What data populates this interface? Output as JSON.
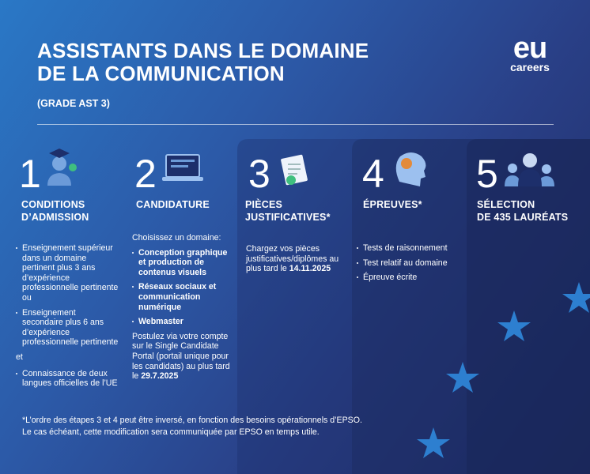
{
  "header": {
    "title_lines": [
      "ASSISTANTS DANS LE DOMAINE",
      "DE LA COMMUNICATION"
    ],
    "subtitle": "(GRADE AST 3)"
  },
  "logo": {
    "mark": "eu",
    "text": "careers"
  },
  "steps": [
    {
      "number": "1",
      "title_lines": [
        "CONDITIONS",
        "D’ADMISSION"
      ],
      "bullets_a": [
        "Enseignement supérieur dans un domaine pertinent plus 3 ans d’expérience professionnelle pertinente ou",
        "Enseignement secondaire plus 6 ans d’expérience professionnelle pertinente"
      ],
      "joiner": "et",
      "bullets_b": [
        "Connaissance de deux langues officielles de l’UE"
      ]
    },
    {
      "number": "2",
      "title_lines": [
        "CANDIDATURE"
      ],
      "intro": "Choisissez un domaine:",
      "bullets": [
        "Conception graphique et production de contenus visuels",
        "Réseaux sociaux et communication numérique",
        "Webmaster"
      ],
      "note": {
        "text": "Postulez via votre compte sur le Single Candidate Portal (portail unique pour les candidats) au plus tard le ",
        "bold": "29.7.2025"
      }
    },
    {
      "number": "3",
      "title_lines": [
        "PIÈCES",
        "JUSTIFICATIVES*"
      ],
      "note": {
        "text": "Chargez vos pièces justificatives/diplômes au plus tard le ",
        "bold": "14.11.2025"
      }
    },
    {
      "number": "4",
      "title_lines": [
        "ÉPREUVES*"
      ],
      "bullets": [
        "Tests de raisonnement",
        "Test relatif au domaine",
        "Épreuve écrite"
      ]
    },
    {
      "number": "5",
      "title_lines": [
        "SÉLECTION",
        "DE 435 LAURÉATS"
      ]
    }
  ],
  "footnote": [
    "*L’ordre des étapes 3 et 4 peut être inversé, en fonction des besoins opérationnels d’EPSO.",
    "Le cas échéant, cette modification sera communiquée par EPSO en temps utile."
  ]
}
